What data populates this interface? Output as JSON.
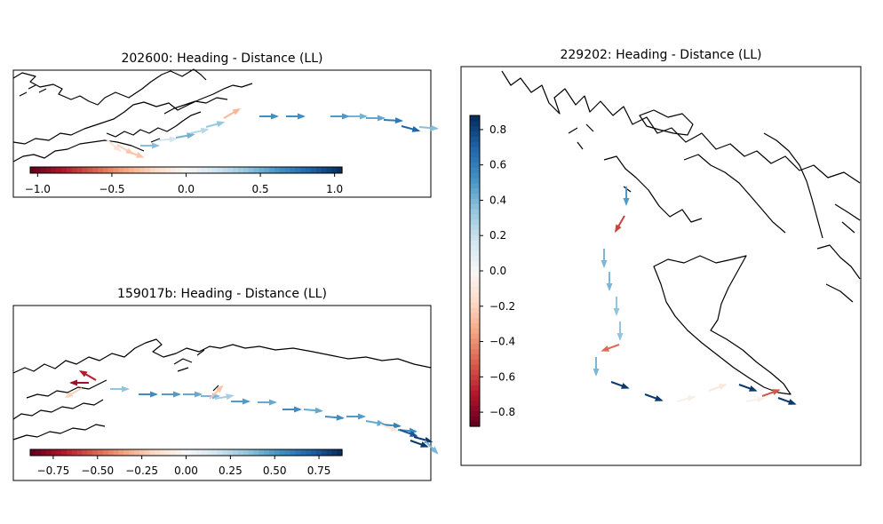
{
  "chart_data": [
    {
      "type": "quiver-map",
      "title": "202600: Heading - Distance (LL)",
      "colormap": "RdBu",
      "colorbar": {
        "orientation": "horizontal",
        "range": [
          -1.05,
          1.05
        ],
        "ticks": [
          "−1.0",
          "−0.5",
          "0.0",
          "0.5",
          "1.0"
        ]
      },
      "arrows": [
        {
          "value": -0.15,
          "angle": 40
        },
        {
          "value": -0.25,
          "angle": 30
        },
        {
          "value": -0.3,
          "angle": 20
        },
        {
          "value": 0.45,
          "angle": 0
        },
        {
          "value": 0.2,
          "angle": -5
        },
        {
          "value": 0.5,
          "angle": -10
        },
        {
          "value": 0.3,
          "angle": -12
        },
        {
          "value": 0.4,
          "angle": -15
        },
        {
          "value": -0.35,
          "angle": -30
        },
        {
          "value": 0.65,
          "angle": 0
        },
        {
          "value": 0.65,
          "angle": 0
        },
        {
          "value": 0.6,
          "angle": 0
        },
        {
          "value": 0.5,
          "angle": 0
        },
        {
          "value": 0.55,
          "angle": 0
        },
        {
          "value": 0.75,
          "angle": 3
        },
        {
          "value": 0.85,
          "angle": 15
        },
        {
          "value": 0.45,
          "angle": 5
        }
      ]
    },
    {
      "type": "quiver-map",
      "title": "159017b: Heading - Distance (LL)",
      "colormap": "RdBu",
      "colorbar": {
        "orientation": "horizontal",
        "range": [
          -0.88,
          0.88
        ],
        "ticks": [
          "−0.75",
          "−0.50",
          "−0.25",
          "0.00",
          "0.25",
          "0.50",
          "0.75"
        ]
      },
      "arrows": [
        {
          "value": -0.75,
          "angle": 180
        },
        {
          "value": -0.7,
          "angle": -150
        },
        {
          "value": -0.2,
          "angle": 150
        },
        {
          "value": 0.35,
          "angle": 0
        },
        {
          "value": 0.55,
          "angle": 0
        },
        {
          "value": 0.5,
          "angle": 0
        },
        {
          "value": 0.45,
          "angle": 0
        },
        {
          "value": 0.4,
          "angle": 0
        },
        {
          "value": 0.3,
          "angle": -10
        },
        {
          "value": -0.25,
          "angle": -45
        },
        {
          "value": 0.5,
          "angle": 0
        },
        {
          "value": 0.45,
          "angle": 0
        },
        {
          "value": 0.55,
          "angle": 0
        },
        {
          "value": 0.45,
          "angle": 5
        },
        {
          "value": 0.55,
          "angle": 5
        },
        {
          "value": 0.5,
          "angle": 0
        },
        {
          "value": 0.45,
          "angle": 10
        },
        {
          "value": 0.6,
          "angle": 5
        },
        {
          "value": 0.55,
          "angle": 5
        },
        {
          "value": 0.85,
          "angle": 15
        },
        {
          "value": -0.1,
          "angle": 20
        },
        {
          "value": 0.75,
          "angle": 20
        },
        {
          "value": 0.85,
          "angle": 20
        },
        {
          "value": 0.4,
          "angle": 45
        }
      ]
    },
    {
      "type": "quiver-map",
      "title": "229202: Heading - Distance (LL)",
      "colormap": "RdBu",
      "colorbar": {
        "orientation": "vertical",
        "range": [
          -0.88,
          0.88
        ],
        "ticks": [
          "0.8",
          "0.6",
          "0.4",
          "0.2",
          "0.0",
          "−0.2",
          "−0.4",
          "−0.6",
          "−0.8"
        ]
      },
      "arrows": [
        {
          "value": 0.5,
          "angle": 90
        },
        {
          "value": -0.6,
          "angle": 120
        },
        {
          "value": 0.4,
          "angle": 90
        },
        {
          "value": 0.4,
          "angle": 90
        },
        {
          "value": 0.35,
          "angle": 90
        },
        {
          "value": 0.35,
          "angle": 90
        },
        {
          "value": -0.5,
          "angle": 160
        },
        {
          "value": 0.4,
          "angle": 90
        },
        {
          "value": 0.85,
          "angle": 20
        },
        {
          "value": 0.85,
          "angle": 20
        },
        {
          "value": -0.05,
          "angle": -15
        },
        {
          "value": -0.1,
          "angle": -20
        },
        {
          "value": 0.85,
          "angle": 20
        },
        {
          "value": -0.05,
          "angle": -10
        },
        {
          "value": -0.55,
          "angle": -20
        },
        {
          "value": 0.85,
          "angle": 20
        }
      ]
    }
  ]
}
